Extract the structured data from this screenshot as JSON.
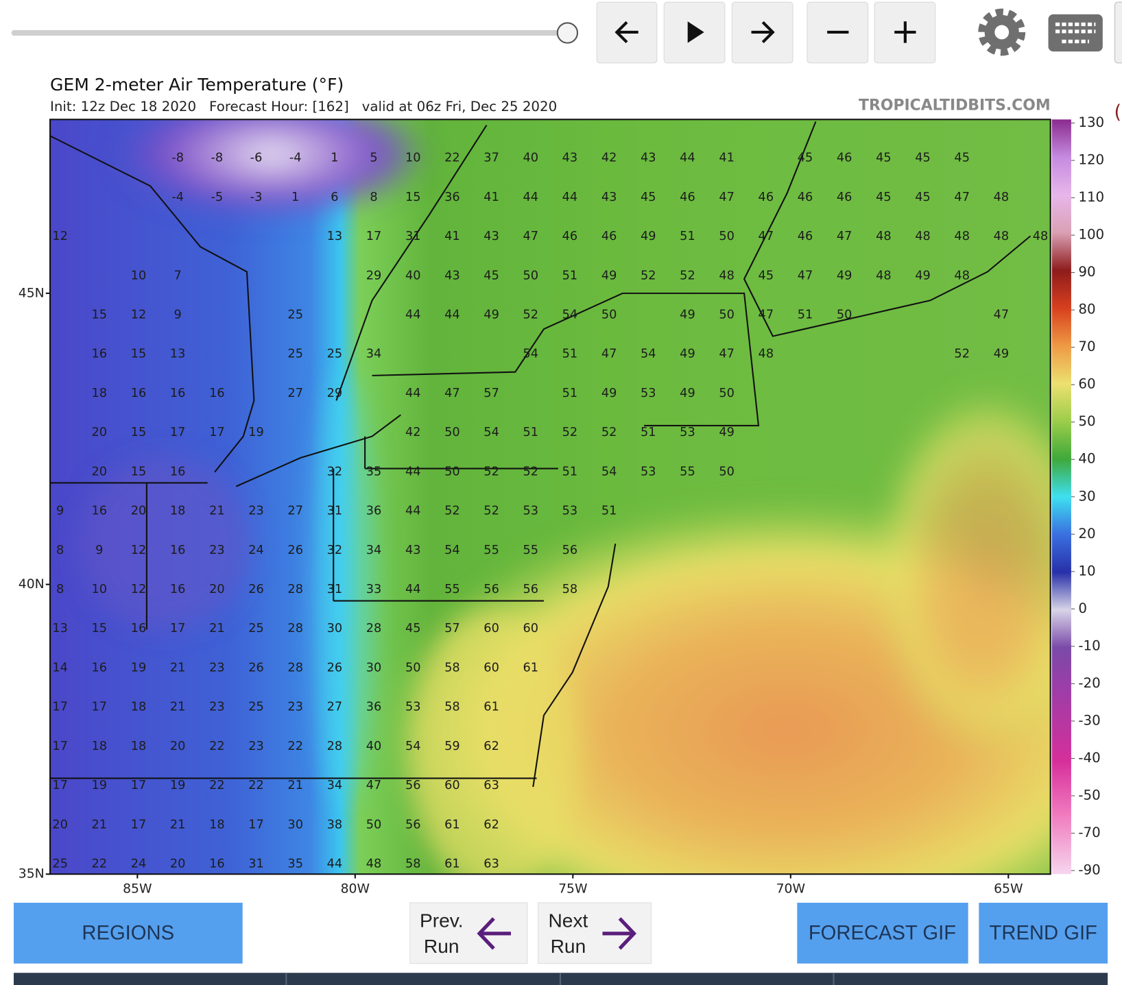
{
  "toolbar": {
    "edge_text": "("
  },
  "map": {
    "title": "GEM 2-meter Air Temperature (°F)",
    "subtitle": "Init: 12z Dec 18 2020   Forecast Hour: [162]   valid at 06z Fri, Dec 25 2020",
    "watermark": "TROPICALTIDBITS.COM",
    "lat_labels": [
      "45N",
      "40N",
      "35N"
    ],
    "lon_labels": [
      "85W",
      "80W",
      "75W",
      "70W",
      "65W"
    ],
    "colorbar_labels": [
      130,
      120,
      110,
      100,
      90,
      80,
      70,
      60,
      50,
      40,
      30,
      20,
      10,
      0,
      -10,
      -20,
      -30,
      -40,
      -50,
      -70,
      -90
    ],
    "values": [
      [
        null,
        null,
        null,
        -8,
        -8,
        -6,
        -4,
        1,
        5,
        10,
        22,
        37,
        40,
        43,
        42,
        43,
        44,
        41,
        null,
        45,
        46,
        45,
        45,
        45,
        null,
        null
      ],
      [
        null,
        null,
        null,
        -4,
        -5,
        -3,
        1,
        6,
        8,
        15,
        36,
        41,
        44,
        44,
        43,
        45,
        46,
        47,
        46,
        46,
        46,
        45,
        45,
        47,
        48,
        null
      ],
      [
        12,
        null,
        null,
        null,
        null,
        null,
        null,
        13,
        17,
        31,
        41,
        43,
        47,
        46,
        46,
        49,
        51,
        50,
        47,
        46,
        47,
        48,
        48,
        48,
        48,
        48
      ],
      [
        null,
        null,
        10,
        7,
        null,
        null,
        null,
        null,
        29,
        40,
        43,
        45,
        50,
        51,
        49,
        52,
        52,
        48,
        45,
        47,
        49,
        48,
        49,
        48,
        null,
        null
      ],
      [
        null,
        15,
        12,
        9,
        null,
        null,
        25,
        null,
        null,
        44,
        44,
        49,
        52,
        54,
        50,
        null,
        49,
        50,
        47,
        51,
        50,
        null,
        null,
        null,
        47,
        null
      ],
      [
        null,
        16,
        15,
        13,
        null,
        null,
        25,
        25,
        34,
        null,
        null,
        null,
        54,
        51,
        47,
        54,
        49,
        47,
        48,
        null,
        null,
        null,
        null,
        52,
        49,
        null
      ],
      [
        null,
        18,
        16,
        16,
        16,
        null,
        27,
        29,
        null,
        44,
        47,
        57,
        null,
        51,
        49,
        53,
        49,
        50,
        null,
        null,
        null,
        null,
        null,
        null,
        null,
        null
      ],
      [
        null,
        20,
        15,
        17,
        17,
        19,
        null,
        null,
        null,
        42,
        50,
        54,
        51,
        52,
        52,
        51,
        53,
        49,
        null,
        null,
        null,
        null,
        null,
        null,
        null,
        null
      ],
      [
        null,
        20,
        15,
        16,
        null,
        null,
        null,
        32,
        35,
        44,
        50,
        52,
        52,
        51,
        54,
        53,
        55,
        50,
        null,
        null,
        null,
        null,
        null,
        null,
        null,
        null
      ],
      [
        9,
        16,
        20,
        18,
        21,
        23,
        27,
        31,
        36,
        44,
        52,
        52,
        53,
        53,
        51,
        null,
        null,
        null,
        null,
        null,
        null,
        null,
        null,
        null,
        null,
        null
      ],
      [
        8,
        9,
        12,
        16,
        23,
        24,
        26,
        32,
        34,
        43,
        54,
        55,
        55,
        56,
        null,
        null,
        null,
        null,
        null,
        null,
        null,
        null,
        null,
        null,
        null,
        null
      ],
      [
        8,
        10,
        12,
        16,
        20,
        26,
        28,
        31,
        33,
        44,
        55,
        56,
        56,
        58,
        null,
        null,
        null,
        null,
        null,
        null,
        null,
        null,
        null,
        null,
        null,
        null
      ],
      [
        13,
        15,
        16,
        17,
        21,
        25,
        28,
        30,
        28,
        45,
        57,
        60,
        60,
        null,
        null,
        null,
        null,
        null,
        null,
        null,
        null,
        null,
        null,
        null,
        null,
        null
      ],
      [
        14,
        16,
        19,
        21,
        23,
        26,
        28,
        26,
        30,
        50,
        58,
        60,
        61,
        null,
        null,
        null,
        null,
        null,
        null,
        null,
        null,
        null,
        null,
        null,
        null,
        null
      ],
      [
        17,
        17,
        18,
        21,
        23,
        25,
        23,
        27,
        36,
        53,
        58,
        61,
        null,
        null,
        null,
        null,
        null,
        null,
        null,
        null,
        null,
        null,
        null,
        null,
        null,
        null
      ],
      [
        17,
        18,
        18,
        20,
        22,
        23,
        22,
        28,
        40,
        54,
        59,
        62,
        null,
        null,
        null,
        null,
        null,
        null,
        null,
        null,
        null,
        null,
        null,
        null,
        null,
        null
      ],
      [
        17,
        19,
        17,
        19,
        22,
        22,
        21,
        34,
        47,
        56,
        60,
        63,
        null,
        null,
        null,
        null,
        null,
        null,
        null,
        null,
        null,
        null,
        null,
        null,
        null,
        null
      ],
      [
        20,
        21,
        17,
        21,
        18,
        17,
        30,
        38,
        50,
        56,
        61,
        62,
        null,
        null,
        null,
        null,
        null,
        null,
        null,
        null,
        null,
        null,
        null,
        null,
        null,
        null
      ],
      [
        25,
        22,
        24,
        20,
        16,
        31,
        35,
        44,
        48,
        58,
        61,
        63,
        null,
        null,
        null,
        null,
        null,
        null,
        null,
        null,
        null,
        null,
        null,
        null,
        null,
        null
      ]
    ]
  },
  "buttons": {
    "regions": "REGIONS",
    "prev_run": [
      "Prev.",
      "Run"
    ],
    "next_run": [
      "Next",
      "Run"
    ],
    "forecast_gif": "FORECAST GIF",
    "trend_gif": "TREND GIF"
  }
}
